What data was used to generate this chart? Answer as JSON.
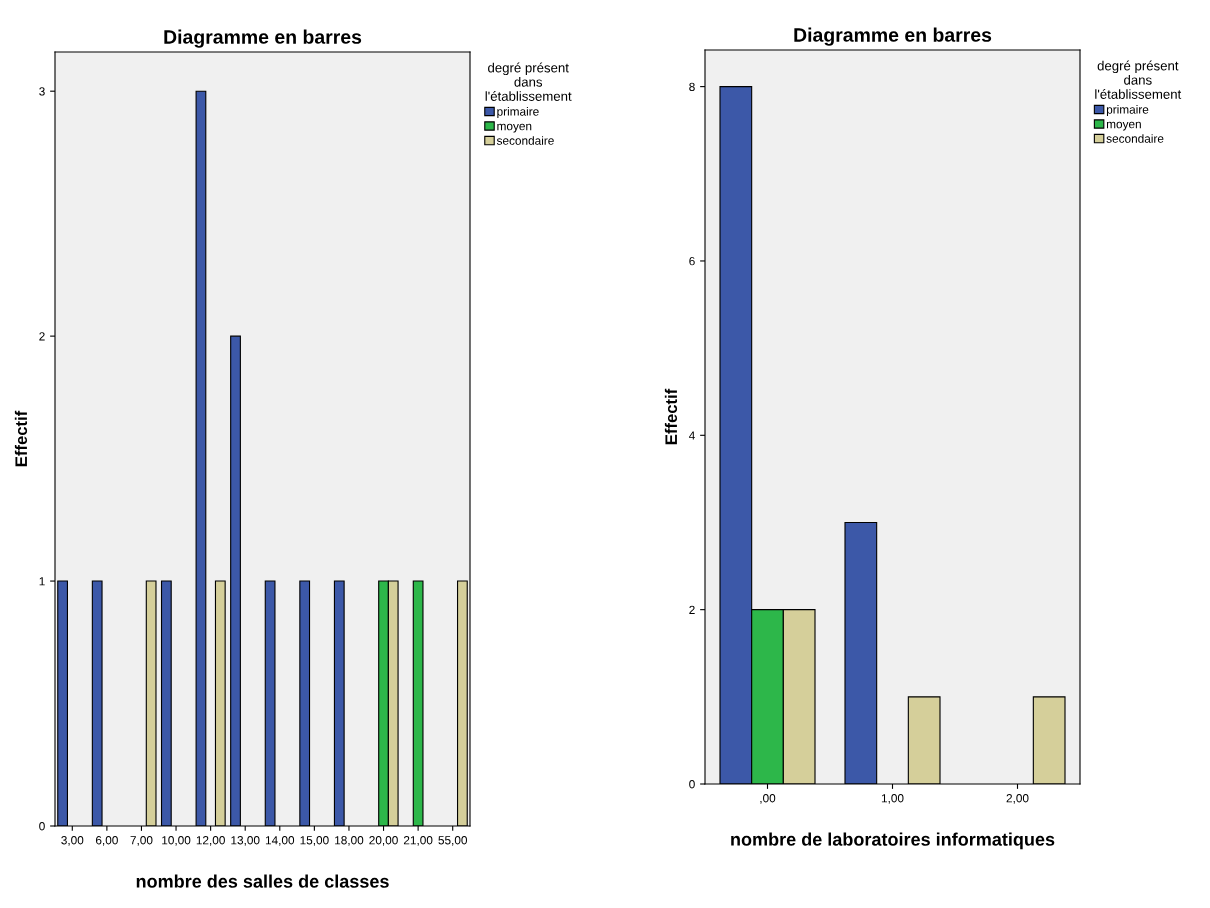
{
  "chart_data": [
    {
      "type": "bar",
      "title": "Diagramme en barres",
      "xlabel": "nombre des salles de classes",
      "ylabel": "Effectif",
      "legend_title": "degré présent\ndans\nl'établissement",
      "categories": [
        "3,00",
        "6,00",
        "7,00",
        "10,00",
        "12,00",
        "13,00",
        "14,00",
        "15,00",
        "18,00",
        "20,00",
        "21,00",
        "55,00"
      ],
      "series": [
        {
          "name": "primaire",
          "color": "#3c58a8",
          "values": [
            1,
            1,
            null,
            1,
            3,
            2,
            1,
            1,
            1,
            null,
            null,
            null
          ]
        },
        {
          "name": "moyen",
          "color": "#2db74a",
          "values": [
            null,
            null,
            null,
            null,
            null,
            null,
            null,
            null,
            null,
            1,
            1,
            null
          ]
        },
        {
          "name": "secondaire",
          "color": "#d5cf9a",
          "values": [
            null,
            null,
            1,
            null,
            1,
            null,
            null,
            null,
            null,
            1,
            null,
            1
          ]
        }
      ],
      "ylim": [
        0,
        3.16
      ],
      "yticks": [
        0,
        1,
        2,
        3
      ],
      "grid": false,
      "legend": "top right"
    },
    {
      "type": "bar",
      "title": "Diagramme en barres",
      "xlabel": "nombre de laboratoires informatiques",
      "ylabel": "Effectif",
      "legend_title": "degré présent\ndans\nl'établissement",
      "categories": [
        ",00",
        "1,00",
        "2,00"
      ],
      "series": [
        {
          "name": "primaire",
          "color": "#3c58a8",
          "values": [
            8,
            3,
            null
          ]
        },
        {
          "name": "moyen",
          "color": "#2db74a",
          "values": [
            2,
            null,
            null
          ]
        },
        {
          "name": "secondaire",
          "color": "#d5cf9a",
          "values": [
            2,
            1,
            1
          ]
        }
      ],
      "ylim": [
        0,
        8.42
      ],
      "yticks": [
        0,
        2,
        4,
        6,
        8
      ],
      "grid": false,
      "legend": "top right"
    }
  ]
}
